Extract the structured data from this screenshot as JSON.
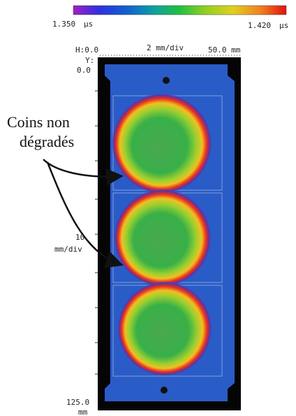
{
  "scale": {
    "min": "1.350",
    "min_unit": "μs",
    "max": "1.420",
    "max_unit": "μs"
  },
  "axes": {
    "h_origin": "H:0.0",
    "h_div": "2 mm/div",
    "h_end": "50.0 mm",
    "y_label": "Y:",
    "y_origin": "0.0",
    "y_div_value": "10",
    "y_div_unit": "mm/div",
    "y_end": "125.0",
    "y_end_unit": "mm"
  },
  "annotation": {
    "line1": "Coins non",
    "line2": "dégradés"
  }
}
